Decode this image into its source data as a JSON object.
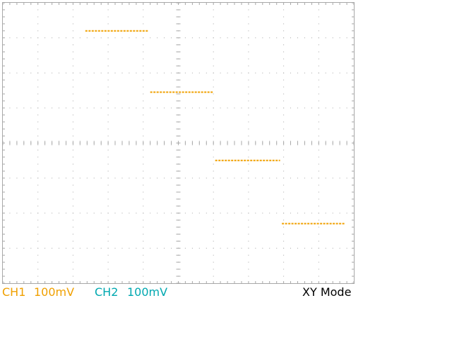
{
  "status_bar": {
    "ch1_label": "CH1",
    "ch1_scale": "100mV",
    "ch2_label": "CH2",
    "ch2_scale": "100mV",
    "mode": "XY Mode"
  },
  "colors": {
    "ch1": "#f0a000",
    "ch2": "#00a8b0",
    "grid": "#a8a8a8",
    "trace": "#f0a000"
  },
  "chart_data": {
    "type": "line",
    "title": "",
    "xlabel": "",
    "ylabel": "",
    "grid": true,
    "divisions": {
      "x": 10,
      "y": 8
    },
    "xlim": [
      -5,
      5
    ],
    "ylim": [
      -4,
      4
    ],
    "series": [
      {
        "segments": [
          {
            "x": [
              -2.65,
              -0.85
            ],
            "y": [
              3.2,
              3.2
            ]
          },
          {
            "x": [
              -0.8,
              1.0
            ],
            "y": [
              1.45,
              1.45
            ]
          },
          {
            "x": [
              1.05,
              2.9
            ],
            "y": [
              -0.5,
              -0.5
            ]
          },
          {
            "x": [
              2.95,
              4.75
            ],
            "y": [
              -2.3,
              -2.3
            ]
          }
        ]
      }
    ]
  }
}
